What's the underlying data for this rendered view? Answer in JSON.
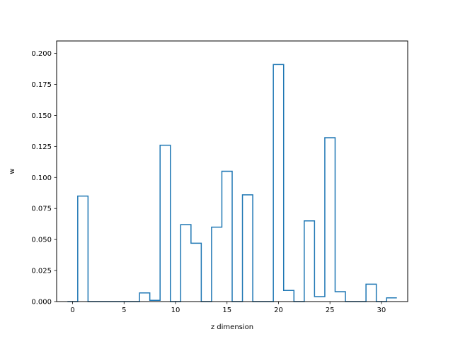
{
  "chart_data": {
    "type": "line",
    "style": "step-histogram",
    "xlabel": "z dimension",
    "ylabel": "w",
    "xlim": [
      -1.55,
      32.55
    ],
    "ylim": [
      0.0,
      0.21
    ],
    "x_ticks": [
      0,
      5,
      10,
      15,
      20,
      25,
      30
    ],
    "y_ticks": [
      0.0,
      0.025,
      0.05,
      0.075,
      0.1,
      0.125,
      0.15,
      0.175,
      0.2
    ],
    "grid": false,
    "legend": "none",
    "series": [
      {
        "color": "#1f77b4",
        "x": [
          0,
          1,
          2,
          3,
          4,
          5,
          6,
          7,
          8,
          9,
          10,
          11,
          12,
          13,
          14,
          15,
          16,
          17,
          18,
          19,
          20,
          21,
          22,
          23,
          24,
          25,
          26,
          27,
          28,
          29,
          30,
          31
        ],
        "values": [
          0.0,
          0.085,
          0.0,
          0.0,
          0.0,
          0.0,
          0.0,
          0.007,
          0.001,
          0.126,
          0.0,
          0.062,
          0.047,
          0.0,
          0.06,
          0.105,
          0.0,
          0.086,
          0.0,
          0.0,
          0.191,
          0.009,
          0.0,
          0.065,
          0.004,
          0.132,
          0.008,
          0.0,
          0.0,
          0.014,
          0.0,
          0.003
        ]
      }
    ]
  }
}
